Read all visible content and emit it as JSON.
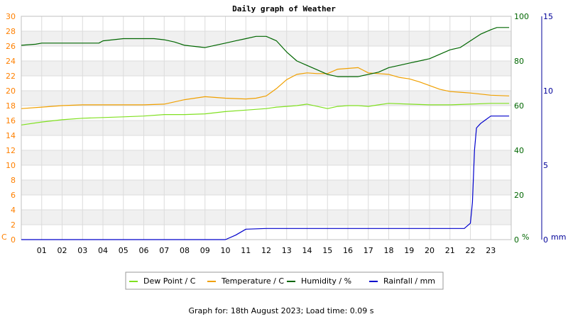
{
  "chart_data": {
    "type": "line",
    "title": "Daily graph of Weather",
    "footer": "Graph for: 18th August 2023; Load time: 0.09 s",
    "x_ticks": [
      "01",
      "02",
      "03",
      "04",
      "05",
      "06",
      "07",
      "08",
      "09",
      "10",
      "11",
      "12",
      "13",
      "14",
      "15",
      "16",
      "17",
      "18",
      "19",
      "20",
      "21",
      "22",
      "23"
    ],
    "xlim": [
      0,
      24
    ],
    "axes": {
      "temperature": {
        "unit": "C",
        "ylim": [
          0,
          30
        ],
        "ticks": [
          0,
          2,
          4,
          6,
          8,
          10,
          12,
          14,
          16,
          18,
          20,
          22,
          24,
          26,
          28,
          30
        ],
        "color": "#ff8000"
      },
      "humidity": {
        "unit": "%",
        "ylim": [
          0,
          100
        ],
        "ticks": [
          0,
          20,
          40,
          60,
          80,
          100
        ],
        "color": "#006600"
      },
      "rainfall": {
        "unit": "mm",
        "ylim": [
          0,
          15
        ],
        "ticks": [
          0,
          5,
          10,
          15
        ],
        "color": "#000099"
      }
    },
    "legend": [
      "Dew Point / C",
      "Temperature / C",
      "Humidity / %",
      "Rainfall / mm"
    ],
    "series": [
      {
        "name": "Dew Point / C",
        "color": "#80e020",
        "axis": "temperature",
        "x": [
          0,
          1,
          2,
          3,
          4,
          5,
          6,
          7,
          8,
          9,
          10,
          11,
          12,
          12.5,
          13,
          13.5,
          14,
          14.5,
          15,
          15.5,
          16,
          16.5,
          17,
          17.5,
          18,
          19,
          20,
          21,
          22,
          23,
          23.9
        ],
        "y": [
          15.4,
          15.8,
          16.1,
          16.3,
          16.4,
          16.5,
          16.6,
          16.8,
          16.8,
          16.9,
          17.2,
          17.4,
          17.6,
          17.8,
          17.9,
          18.0,
          18.2,
          17.9,
          17.6,
          17.9,
          18.0,
          18.0,
          17.9,
          18.1,
          18.3,
          18.2,
          18.1,
          18.1,
          18.2,
          18.3,
          18.3
        ]
      },
      {
        "name": "Temperature / C",
        "color": "#f0a000",
        "axis": "temperature",
        "x": [
          0,
          1,
          2,
          3,
          4,
          5,
          6,
          7,
          8,
          9,
          10,
          11,
          11.5,
          12,
          12.5,
          13,
          13.5,
          14,
          14.5,
          15,
          15.5,
          16,
          16.5,
          17,
          17.5,
          18,
          18.5,
          19,
          19.5,
          20,
          20.5,
          21,
          21.5,
          22,
          23,
          23.9
        ],
        "y": [
          17.6,
          17.8,
          18.0,
          18.1,
          18.1,
          18.1,
          18.1,
          18.2,
          18.8,
          19.2,
          19.0,
          18.9,
          19.0,
          19.3,
          20.3,
          21.5,
          22.2,
          22.4,
          22.3,
          22.3,
          22.9,
          23.0,
          23.1,
          22.4,
          22.3,
          22.2,
          21.8,
          21.6,
          21.2,
          20.7,
          20.2,
          19.9,
          19.8,
          19.7,
          19.4,
          19.3
        ]
      },
      {
        "name": "Humidity / %",
        "color": "#006600",
        "axis": "humidity",
        "x": [
          0,
          0.7,
          1,
          2,
          3,
          3.8,
          4,
          5,
          6,
          6.5,
          7,
          7.5,
          8,
          9,
          9.5,
          10,
          10.5,
          11,
          11.5,
          12,
          12.5,
          13,
          13.5,
          14,
          14.5,
          15,
          15.5,
          16,
          16.5,
          17,
          17.5,
          18,
          18.5,
          19,
          19.5,
          20,
          20.5,
          21,
          21.5,
          22,
          22.5,
          23,
          23.3,
          23.9
        ],
        "y": [
          87,
          87.5,
          88,
          88,
          88,
          88,
          89,
          90,
          90,
          90,
          89.5,
          88.5,
          87,
          86,
          87,
          88,
          89,
          90,
          91,
          91,
          89,
          84,
          80,
          78,
          76,
          74,
          73,
          73,
          73,
          74,
          75,
          77,
          78,
          79,
          80,
          81,
          83,
          85,
          86,
          89,
          92,
          94,
          95,
          95
        ]
      },
      {
        "name": "Rainfall / mm",
        "color": "#0000cc",
        "axis": "rainfall",
        "x": [
          0,
          9.5,
          10,
          10.5,
          11,
          12,
          13,
          14,
          15,
          16,
          17,
          18,
          19,
          20,
          21,
          21.7,
          22,
          22.1,
          22.2,
          22.3,
          22.5,
          22.7,
          23,
          23.5,
          23.9
        ],
        "y": [
          0,
          0,
          0,
          0.3,
          0.7,
          0.75,
          0.75,
          0.75,
          0.75,
          0.75,
          0.75,
          0.75,
          0.75,
          0.75,
          0.75,
          0.75,
          1.1,
          2.5,
          6.0,
          7.5,
          7.8,
          8.0,
          8.3,
          8.3,
          8.3
        ]
      }
    ]
  }
}
